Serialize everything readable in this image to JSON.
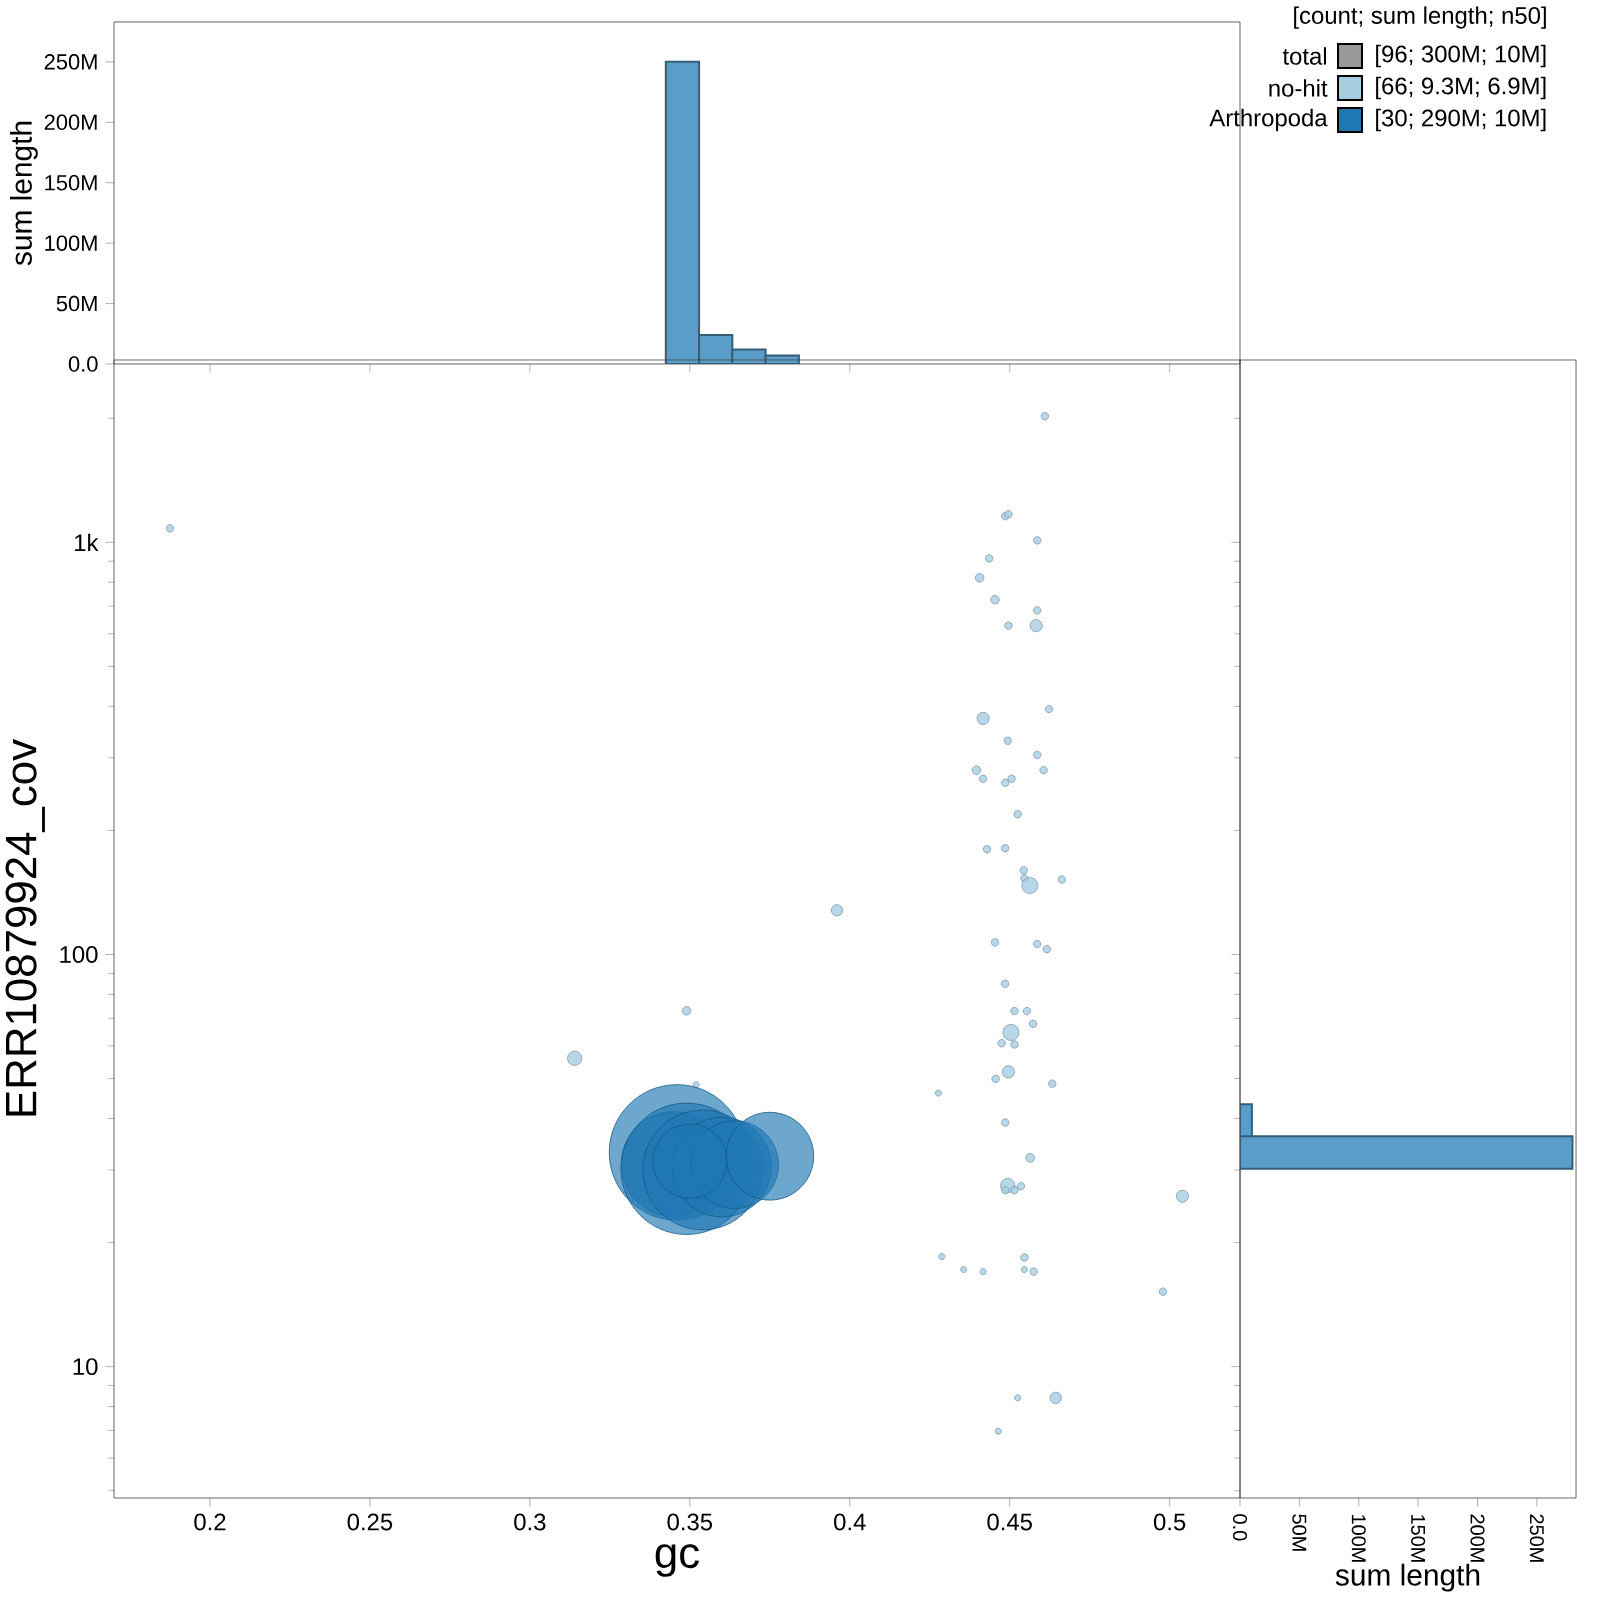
{
  "chart_data": [
    {
      "type": "histogram",
      "ylabel": "sum length",
      "color": "#5b9dc9",
      "bins": [
        0.3425,
        0.3529,
        0.3633,
        0.3737,
        0.3841
      ],
      "values": [
        250,
        24,
        12,
        7
      ],
      "xlim": [
        0.17,
        0.522
      ],
      "ylim": [
        0,
        283
      ],
      "xticks": [
        {
          "value": 0.2,
          "label": null
        },
        {
          "value": 0.25,
          "label": null
        },
        {
          "value": 0.3,
          "label": null
        },
        {
          "value": 0.35,
          "label": null
        },
        {
          "value": 0.4,
          "label": null
        },
        {
          "value": 0.45,
          "label": null
        },
        {
          "value": 0.5,
          "label": null
        }
      ],
      "yticks": [
        {
          "value": 0,
          "label": "0.0"
        },
        {
          "value": 50,
          "label": "50M"
        },
        {
          "value": 100,
          "label": "100M"
        },
        {
          "value": 150,
          "label": "150M"
        },
        {
          "value": 200,
          "label": "200M"
        },
        {
          "value": 250,
          "label": "250M"
        }
      ],
      "tick_labels": "y"
    },
    {
      "type": "bubble",
      "xlabel": "gc",
      "ylabel": "ERR10879924_cov",
      "log": "y",
      "legend": "top right",
      "legend_title": "[count; sum length; n50]",
      "annotations": [
        "total",
        "[96; 300M; 10M]",
        "[66; 9.3M; 6.9M]",
        "[30; 290M; 10M]"
      ],
      "xlim": [
        0.17,
        0.522
      ],
      "ylim": [
        4.8,
        2770
      ],
      "xticks": [
        0.2,
        0.25,
        0.3,
        0.35,
        0.4,
        0.45,
        0.5
      ],
      "yticks": [
        10,
        100,
        {
          "value": 1000,
          "label": "1k"
        }
      ],
      "series": [
        {
          "name": "no-hit",
          "color": "#a6cee3",
          "x": [
            0.1875,
            0.396,
            0.349,
            0.314,
            0.352,
            0.461,
            0.4486,
            0.4496,
            0.4586,
            0.4436,
            0.4406,
            0.4454,
            0.4586,
            0.4583,
            0.4496,
            0.4623,
            0.4417,
            0.4494,
            0.4586,
            0.4396,
            0.4417,
            0.4606,
            0.4486,
            0.4506,
            0.4525,
            0.4429,
            0.4486,
            0.4544,
            0.4546,
            0.4563,
            0.4663,
            0.4454,
            0.4586,
            0.4616,
            0.4486,
            0.4515,
            0.4554,
            0.4504,
            0.4573,
            0.4475,
            0.4515,
            0.4496,
            0.4456,
            0.4633,
            0.4277,
            0.4486,
            0.4564,
            0.4494,
            0.4486,
            0.4515,
            0.4535,
            0.504,
            0.4288,
            0.4356,
            0.4417,
            0.4546,
            0.4546,
            0.4575,
            0.4979,
            0.4525,
            0.4644,
            0.4464
          ],
          "values": [
            1081,
            128,
            73,
            56,
            48.3,
            2023,
            1157,
            1170,
            1011,
            914,
            820,
            726,
            684,
            628,
            628,
            394,
            374,
            330,
            305,
            280,
            267,
            280,
            261,
            267,
            219,
            180,
            181,
            160,
            153,
            147,
            152,
            107,
            106,
            103,
            84.9,
            72.9,
            72.9,
            64.7,
            67.9,
            60.9,
            60.5,
            51.9,
            49.9,
            48.6,
            46.1,
            39.1,
            32.1,
            27.5,
            26.8,
            26.8,
            27.4,
            25.9,
            18.5,
            17.2,
            17.0,
            18.4,
            17.2,
            17.0,
            15.2,
            8.4,
            8.4,
            6.97
          ],
          "sizes": [
            0.003,
            0.007,
            0.004,
            0.011,
            0.002,
            0.003,
            0.003,
            0.003,
            0.003,
            0.003,
            0.004,
            0.004,
            0.003,
            0.008,
            0.003,
            0.003,
            0.008,
            0.003,
            0.003,
            0.004,
            0.003,
            0.003,
            0.003,
            0.003,
            0.003,
            0.003,
            0.003,
            0.003,
            0.003,
            0.014,
            0.003,
            0.003,
            0.003,
            0.003,
            0.003,
            0.003,
            0.003,
            0.014,
            0.003,
            0.003,
            0.003,
            0.008,
            0.003,
            0.003,
            0.002,
            0.003,
            0.004,
            0.011,
            0.003,
            0.003,
            0.003,
            0.008,
            0.002,
            0.002,
            0.002,
            0.003,
            0.002,
            0.003,
            0.003,
            0.002,
            0.007,
            0.002
          ]
        },
        {
          "name": "Arthropoda",
          "color": "#1f78b4",
          "x": [
            0.346,
            0.345,
            0.349,
            0.354,
            0.36,
            0.364,
            0.375,
            0.35
          ],
          "values": [
            33.1,
            31,
            30.2,
            30.0,
            30.5,
            30.9,
            32.4,
            31.5
          ],
          "sizes": [
            1,
            0.6,
            0.94,
            0.78,
            0.54,
            0.42,
            0.42,
            0.3
          ]
        }
      ]
    },
    {
      "type": "histogram",
      "orientation": "horizontal",
      "xlabel": "sum length",
      "color": "#5b9dc9",
      "log": "y",
      "bins": [
        30.2,
        36.2,
        43.3
      ],
      "values": [
        280,
        10
      ],
      "xlim": [
        0,
        283
      ],
      "ylim": [
        4.8,
        2770
      ],
      "xticks": [
        {
          "value": 0,
          "label": "0.0"
        },
        {
          "value": 50,
          "label": "50M"
        },
        {
          "value": 100,
          "label": "100M"
        },
        {
          "value": 150,
          "label": "150M"
        },
        {
          "value": 200,
          "label": "200M"
        },
        {
          "value": 250,
          "label": "250M"
        }
      ],
      "yticks": [
        {
          "value": 10,
          "label": null
        },
        {
          "value": 100,
          "label": null
        },
        {
          "value": 1000,
          "label": null
        }
      ],
      "tick_labels": "x"
    }
  ]
}
